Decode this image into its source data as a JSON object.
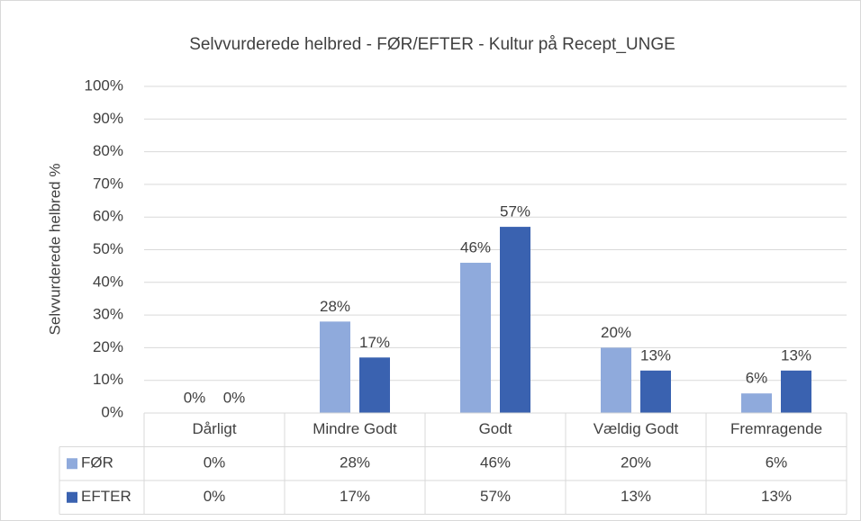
{
  "chart_data": {
    "type": "bar",
    "title": "Selvvurderede helbred - FØR/EFTER - Kultur på Recept_UNGE",
    "y_label": "Selvvurderede helbred %",
    "categories": [
      "Dårligt",
      "Mindre Godt",
      "Godt",
      "Vældig Godt",
      "Fremragende"
    ],
    "series": [
      {
        "name": "FØR",
        "color": "#8faadc",
        "values": [
          0,
          28,
          46,
          20,
          6
        ],
        "value_labels": [
          "0%",
          "28%",
          "46%",
          "20%",
          "6%"
        ]
      },
      {
        "name": "EFTER",
        "color": "#3a62b0",
        "values": [
          0,
          17,
          57,
          13,
          13
        ],
        "value_labels": [
          "0%",
          "17%",
          "57%",
          "13%",
          "13%"
        ]
      }
    ],
    "ylim": [
      0,
      100
    ],
    "yticks": [
      {
        "value": 0,
        "label": "0%"
      },
      {
        "value": 10,
        "label": "10%"
      },
      {
        "value": 20,
        "label": "20%"
      },
      {
        "value": 30,
        "label": "30%"
      },
      {
        "value": 40,
        "label": "40%"
      },
      {
        "value": 50,
        "label": "50%"
      },
      {
        "value": 60,
        "label": "60%"
      },
      {
        "value": 70,
        "label": "70%"
      },
      {
        "value": 80,
        "label": "80%"
      },
      {
        "value": 90,
        "label": "90%"
      },
      {
        "value": 100,
        "label": "100%"
      }
    ],
    "grid": true,
    "data_table": true
  }
}
